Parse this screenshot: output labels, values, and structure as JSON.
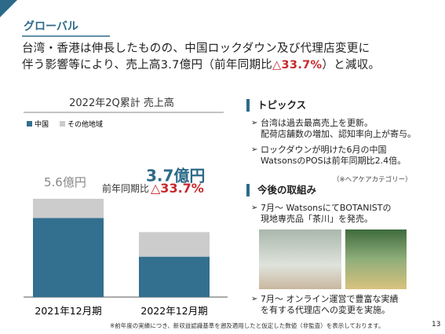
{
  "header": {
    "title": "グローバル",
    "lead": [
      "台湾・香港は伸長したものの、中国ロックダウン及び代理店変更に",
      "伴う影響等により、売上高3.7億円（前年同期比",
      "△33.7%",
      "）と減収。"
    ]
  },
  "chart_data": {
    "type": "bar",
    "stacked": true,
    "title": "2022年2Q累計 売上高",
    "categories": [
      "2021年12月期",
      "2022年12月期"
    ],
    "series": [
      {
        "name": "中国",
        "color": "#336f8e",
        "values": [
          4.5,
          2.3
        ]
      },
      {
        "name": "その他地域",
        "color": "#cccccc",
        "values": [
          1.1,
          1.4
        ]
      }
    ],
    "totals": [
      5.6,
      3.7
    ],
    "total_labels": [
      "5.6億円",
      "3.7億円"
    ],
    "change_label": "前年同期比",
    "change_value": "△33.7%",
    "ylim": [
      0,
      6
    ],
    "legend": "top-left"
  },
  "topics": {
    "title": "トピックス",
    "items": [
      [
        "台湾は過去最高売上を更新。",
        "配荷店舗数の増加、認知率向上が寄与。"
      ],
      [
        "ロックダウンが明けた6月の中国",
        "WatsonsのPOSは前年同期比2.4倍。"
      ]
    ],
    "note": "（※ヘアケアカテゴリー）"
  },
  "plans": {
    "title": "今後の取組み",
    "items": [
      [
        "7月〜 WatsonsにてBOTANISTの",
        "現地専売品「茶川」を発売。"
      ],
      [
        "7月〜 オンライン運営で豊富な実績",
        "を有する代理店への変更を実施。"
      ]
    ]
  },
  "footer": {
    "note": "※前年度の実績につき、新収益認識基準を遡及適用したと仮定した数値（非監査）を表示しております。",
    "page": "13"
  }
}
